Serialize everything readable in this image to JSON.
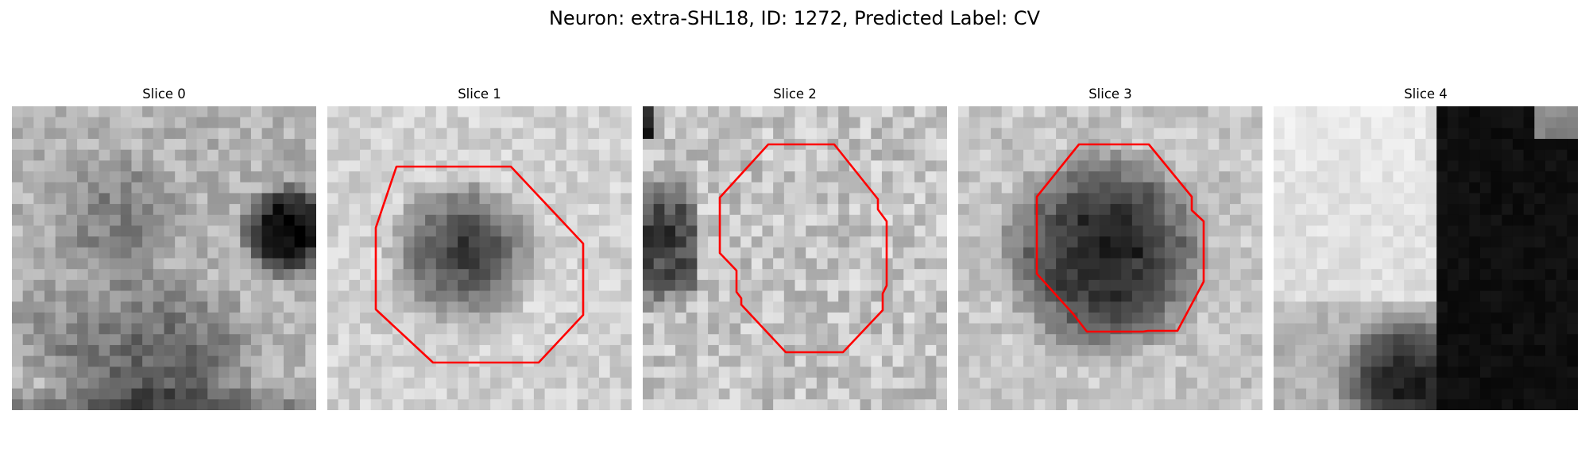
{
  "figure": {
    "title": "Neuron: extra-SHL18, ID: 1272, Predicted Label: CV"
  },
  "colors": {
    "background": "#ffffff",
    "contour": "#ff0000",
    "colormap": "grayscale"
  },
  "panels": [
    {
      "title": "Slice 0",
      "image": "grayscale microscopy patch with a dark blob at right edge and dark region along the bottom",
      "has_contour": false
    },
    {
      "title": "Slice 1",
      "image": "grayscale microscopy patch with a dark roughly circular blob in the center",
      "has_contour": true
    },
    {
      "title": "Slice 2",
      "image": "grayscale noisy light microscopy patch with a dark vertical band at the left edge",
      "has_contour": true
    },
    {
      "title": "Slice 3",
      "image": "grayscale microscopy patch with a large dark circular blob in the center",
      "has_contour": true
    },
    {
      "title": "Slice 4",
      "image": "grayscale microscopy patch with light upper-left area, dark patch lower-left and black vertical band on the right",
      "has_contour": false
    }
  ]
}
